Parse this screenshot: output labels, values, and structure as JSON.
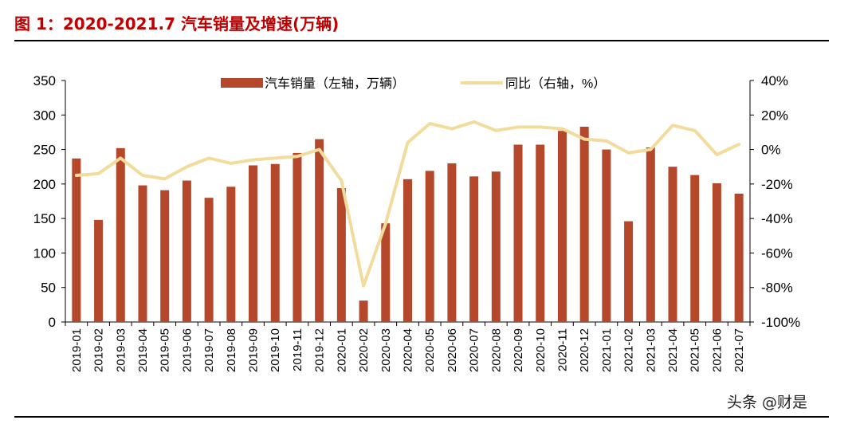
{
  "page": {
    "figure_title": "图 1：2020-2021.7 汽车销量及增速(万辆)",
    "watermark": "头条 @财是"
  },
  "chart_data": {
    "type": "bar+line",
    "categories": [
      "2019-01",
      "2019-02",
      "2019-03",
      "2019-04",
      "2019-05",
      "2019-06",
      "2019-07",
      "2019-08",
      "2019-09",
      "2019-10",
      "2019-11",
      "2019-12",
      "2020-01",
      "2020-02",
      "2020-03",
      "2020-04",
      "2020-05",
      "2020-06",
      "2020-07",
      "2020-08",
      "2020-09",
      "2020-10",
      "2020-11",
      "2020-12",
      "2021-01",
      "2021-02",
      "2021-03",
      "2021-04",
      "2021-05",
      "2021-06",
      "2021-07"
    ],
    "series": [
      {
        "name": "汽车销量（左轴，万辆）",
        "type": "bar",
        "axis": "left",
        "color": "#b5472a",
        "values": [
          237,
          148,
          252,
          198,
          191,
          205,
          180,
          196,
          227,
          229,
          245,
          265,
          194,
          31,
          143,
          207,
          219,
          230,
          211,
          218,
          257,
          257,
          277,
          283,
          250,
          146,
          253,
          225,
          213,
          201,
          186
        ]
      },
      {
        "name": "同比（右轴，%）",
        "type": "line",
        "axis": "right",
        "color": "#f2dc9b",
        "values": [
          -15,
          -14,
          -5,
          -15,
          -17,
          -10,
          -5,
          -8,
          -6,
          -5,
          -4,
          0,
          -18,
          -79,
          -43,
          4,
          15,
          12,
          16,
          11,
          13,
          13,
          12,
          6,
          5,
          -2,
          0,
          14,
          11,
          -3,
          3
        ]
      }
    ],
    "y_left": {
      "ylim": [
        0,
        350
      ],
      "ticks": [
        0,
        50,
        100,
        150,
        200,
        250,
        300,
        350
      ]
    },
    "y_right": {
      "ylim": [
        -100,
        40
      ],
      "ticks": [
        "-100%",
        "-80%",
        "-60%",
        "-40%",
        "-20%",
        "0%",
        "20%",
        "40%"
      ]
    },
    "legend": "top-center",
    "grid": false
  }
}
